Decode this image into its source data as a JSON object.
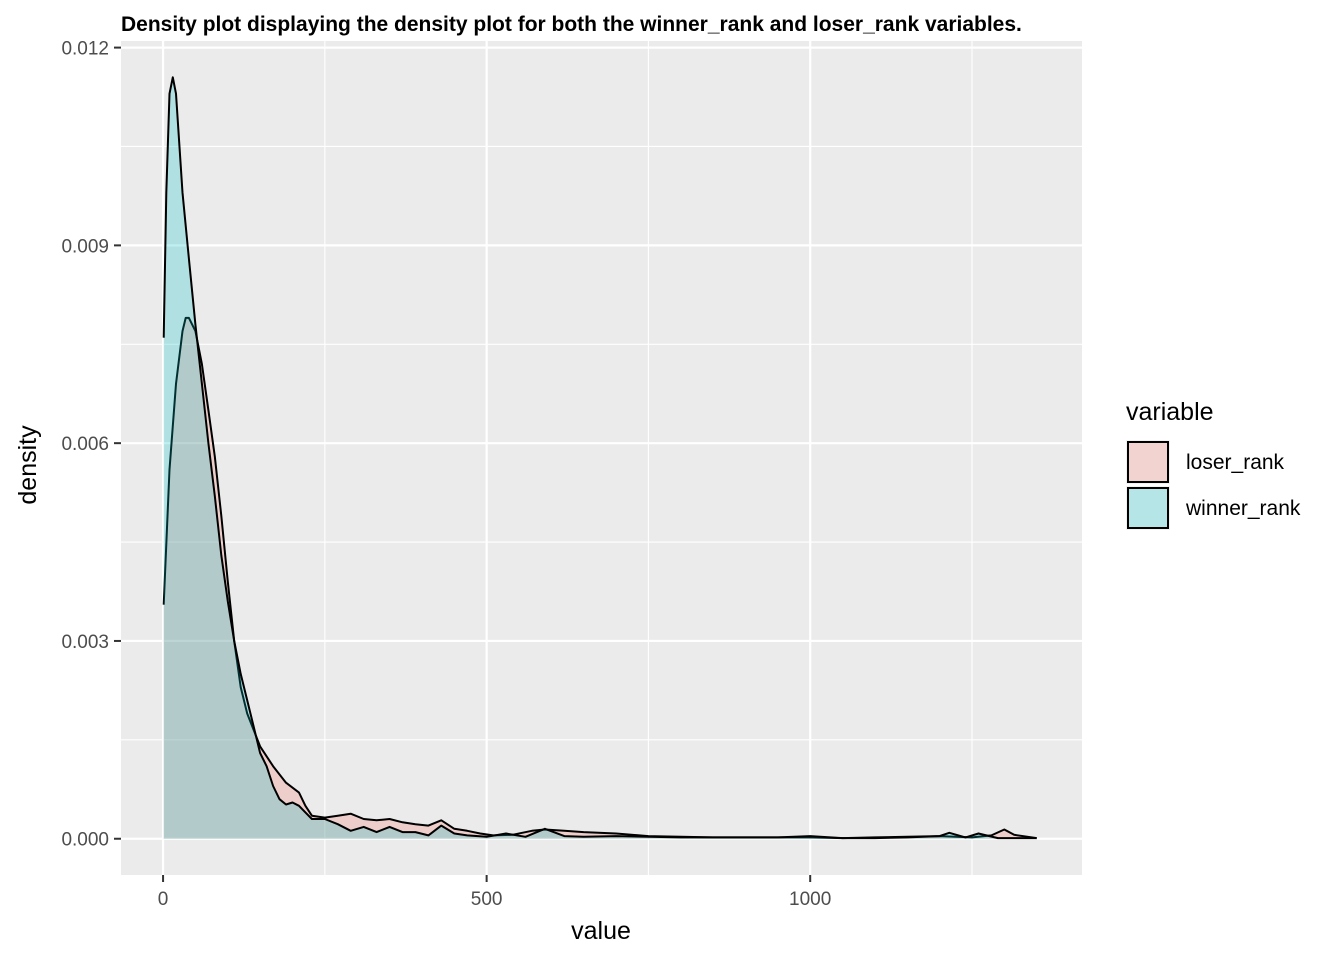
{
  "chart_data": {
    "type": "area",
    "title": "Density plot displaying the density plot for both the winner_rank and loser_rank variables.",
    "xlabel": "value",
    "ylabel": "density",
    "xlim": [
      -65,
      1420
    ],
    "ylim": [
      -0.00055,
      0.0121
    ],
    "x_ticks": [
      0,
      500,
      1000
    ],
    "y_ticks": [
      0.0,
      0.003,
      0.006,
      0.009,
      0.012
    ],
    "x_tick_labels": [
      "0",
      "500",
      "1000"
    ],
    "y_tick_labels": [
      "0.000",
      "0.003",
      "0.006",
      "0.009",
      "0.012"
    ],
    "grid": true,
    "legend": {
      "title": "variable",
      "placement": "right"
    },
    "series": [
      {
        "name": "loser_rank",
        "fill": "#F8766D",
        "points": [
          [
            1,
            0.00355
          ],
          [
            10,
            0.0056
          ],
          [
            20,
            0.0069
          ],
          [
            30,
            0.0077
          ],
          [
            35,
            0.0079
          ],
          [
            40,
            0.0079
          ],
          [
            50,
            0.0077
          ],
          [
            60,
            0.0072
          ],
          [
            70,
            0.0065
          ],
          [
            80,
            0.0058
          ],
          [
            90,
            0.0049
          ],
          [
            100,
            0.0039
          ],
          [
            110,
            0.003
          ],
          [
            120,
            0.0023
          ],
          [
            130,
            0.0019
          ],
          [
            150,
            0.0014
          ],
          [
            170,
            0.0011
          ],
          [
            190,
            0.00085
          ],
          [
            210,
            0.0007
          ],
          [
            220,
            0.0005
          ],
          [
            230,
            0.00035
          ],
          [
            250,
            0.00032
          ],
          [
            270,
            0.00035
          ],
          [
            290,
            0.00038
          ],
          [
            310,
            0.0003
          ],
          [
            330,
            0.00028
          ],
          [
            350,
            0.0003
          ],
          [
            370,
            0.00025
          ],
          [
            390,
            0.00022
          ],
          [
            410,
            0.0002
          ],
          [
            430,
            0.00028
          ],
          [
            450,
            0.00015
          ],
          [
            470,
            0.00012
          ],
          [
            490,
            8e-05
          ],
          [
            510,
            5e-05
          ],
          [
            540,
            6e-05
          ],
          [
            570,
            0.00012
          ],
          [
            590,
            0.00014
          ],
          [
            620,
            0.00012
          ],
          [
            650,
            0.0001
          ],
          [
            700,
            8e-05
          ],
          [
            750,
            4e-05
          ],
          [
            800,
            3e-05
          ],
          [
            850,
            2e-05
          ],
          [
            900,
            2e-05
          ],
          [
            950,
            2e-05
          ],
          [
            1000,
            2e-05
          ],
          [
            1050,
            1e-05
          ],
          [
            1100,
            2e-05
          ],
          [
            1150,
            3e-05
          ],
          [
            1200,
            4e-05
          ],
          [
            1250,
            2e-05
          ],
          [
            1280,
            5e-05
          ],
          [
            1300,
            0.00014
          ],
          [
            1315,
            6e-05
          ],
          [
            1350,
            1e-05
          ]
        ]
      },
      {
        "name": "winner_rank",
        "fill": "#00BFC4",
        "points": [
          [
            1,
            0.0076
          ],
          [
            5,
            0.0098
          ],
          [
            10,
            0.0113
          ],
          [
            15,
            0.01155
          ],
          [
            20,
            0.0113
          ],
          [
            30,
            0.0098
          ],
          [
            40,
            0.0088
          ],
          [
            50,
            0.0078
          ],
          [
            60,
            0.0069
          ],
          [
            70,
            0.006
          ],
          [
            80,
            0.0052
          ],
          [
            90,
            0.0043
          ],
          [
            100,
            0.0036
          ],
          [
            110,
            0.003
          ],
          [
            120,
            0.0025
          ],
          [
            130,
            0.0021
          ],
          [
            140,
            0.0017
          ],
          [
            150,
            0.0013
          ],
          [
            160,
            0.0011
          ],
          [
            170,
            0.0008
          ],
          [
            180,
            0.0006
          ],
          [
            190,
            0.00052
          ],
          [
            200,
            0.00055
          ],
          [
            210,
            0.0005
          ],
          [
            220,
            0.0004
          ],
          [
            230,
            0.0003
          ],
          [
            250,
            0.0003
          ],
          [
            270,
            0.00022
          ],
          [
            290,
            0.00012
          ],
          [
            310,
            0.00018
          ],
          [
            330,
            0.0001
          ],
          [
            350,
            0.00018
          ],
          [
            370,
            0.0001
          ],
          [
            390,
            0.0001
          ],
          [
            410,
            5e-05
          ],
          [
            430,
            0.0002
          ],
          [
            450,
            8e-05
          ],
          [
            470,
            5e-05
          ],
          [
            500,
            3e-05
          ],
          [
            530,
            8e-05
          ],
          [
            560,
            3e-05
          ],
          [
            590,
            0.00015
          ],
          [
            620,
            4e-05
          ],
          [
            650,
            3e-05
          ],
          [
            700,
            4e-05
          ],
          [
            750,
            3e-05
          ],
          [
            800,
            2e-05
          ],
          [
            850,
            2e-05
          ],
          [
            900,
            2e-05
          ],
          [
            950,
            2e-05
          ],
          [
            1000,
            4e-05
          ],
          [
            1050,
            1e-05
          ],
          [
            1100,
            1e-05
          ],
          [
            1150,
            2e-05
          ],
          [
            1200,
            4e-05
          ],
          [
            1215,
            9e-05
          ],
          [
            1240,
            2e-05
          ],
          [
            1260,
            8e-05
          ],
          [
            1290,
            1e-05
          ],
          [
            1350,
            1e-05
          ]
        ]
      }
    ]
  }
}
